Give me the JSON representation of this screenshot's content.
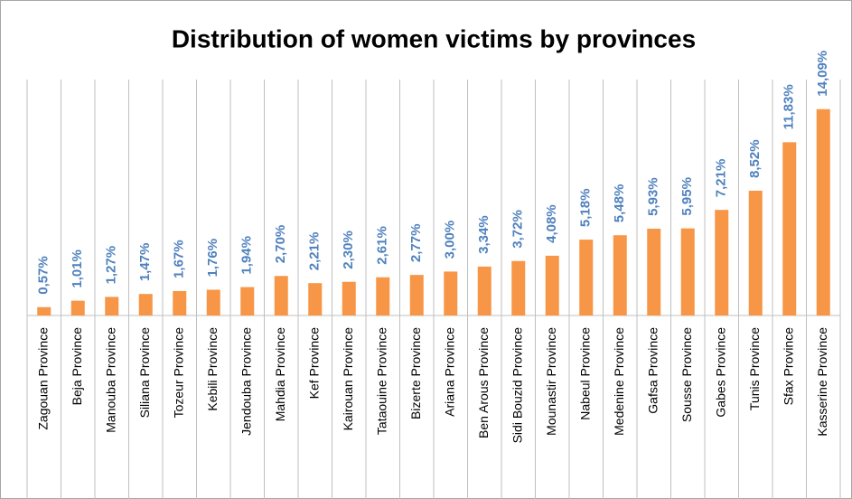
{
  "chart_data": {
    "type": "bar",
    "title": "Distribution of women victims by provinces",
    "categories": [
      "Zagouan Province",
      "Beja Province",
      "Manouba Province",
      "Siliana Province",
      "Tozeur Province",
      "Kebili Province",
      "Jendouba Province",
      "Mahdia Province",
      "Kef Province",
      "Kairouan Province",
      "Tataouine Province",
      "Bizerte Province",
      "Ariana Province",
      "Ben Arous Province",
      "Sidi Bouzid Province",
      "Mounastir Province",
      "Nabeul Province",
      "Medenine Province",
      "Gafsa Province",
      "Sousse Province",
      "Gabes Province",
      "Tunis Province",
      "Sfax Province",
      "Kasserine Province"
    ],
    "values": [
      0.57,
      1.01,
      1.27,
      1.47,
      1.67,
      1.76,
      1.94,
      2.7,
      2.21,
      2.3,
      2.61,
      2.77,
      3.0,
      3.34,
      3.72,
      4.08,
      5.18,
      5.48,
      5.93,
      5.95,
      7.21,
      8.52,
      11.83,
      14.09
    ],
    "value_labels": [
      "0,57%",
      "1,01%",
      "1,27%",
      "1,47%",
      "1,67%",
      "1,76%",
      "1,94%",
      "2,70%",
      "2,21%",
      "2,30%",
      "2,61%",
      "2,77%",
      "3,00%",
      "3,34%",
      "3,72%",
      "4,08%",
      "5,18%",
      "5,48%",
      "5,93%",
      "5,95%",
      "7,21%",
      "8,52%",
      "11,83%",
      "14,09%"
    ],
    "color": "#f79646",
    "label_color": "#4f81bd"
  }
}
